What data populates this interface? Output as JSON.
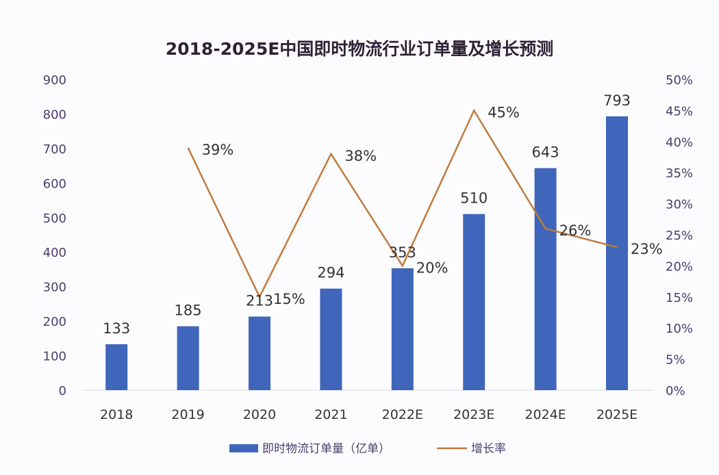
{
  "chart_data": {
    "type": "bar+line",
    "title": "2018-2025E中国即时物流行业订单量及增长预测",
    "categories": [
      "2018",
      "2019",
      "2020",
      "2021",
      "2022E",
      "2023E",
      "2024E",
      "2025E"
    ],
    "series": [
      {
        "name": "即时物流订单量（亿单）",
        "type": "bar",
        "axis": "left",
        "color": "#3f66bb",
        "values": [
          133,
          185,
          213,
          294,
          353,
          510,
          643,
          793
        ]
      },
      {
        "name": "增长率",
        "type": "line",
        "axis": "right",
        "color": "#c07a3e",
        "values": [
          null,
          39,
          15,
          38,
          20,
          45,
          26,
          23
        ],
        "labels": [
          null,
          "39%",
          "15%",
          "38%",
          "20%",
          "45%",
          "26%",
          "23%"
        ]
      }
    ],
    "left_axis": {
      "ylim": [
        0,
        900
      ],
      "ticks": [
        "0",
        "100",
        "200",
        "300",
        "400",
        "500",
        "600",
        "700",
        "800",
        "900"
      ]
    },
    "right_axis": {
      "ylim": [
        0,
        50
      ],
      "ticks": [
        "0%",
        "5%",
        "10%",
        "15%",
        "20%",
        "25%",
        "30%",
        "35%",
        "40%",
        "45%",
        "50%"
      ]
    },
    "grid": false,
    "legend": "bottom"
  }
}
